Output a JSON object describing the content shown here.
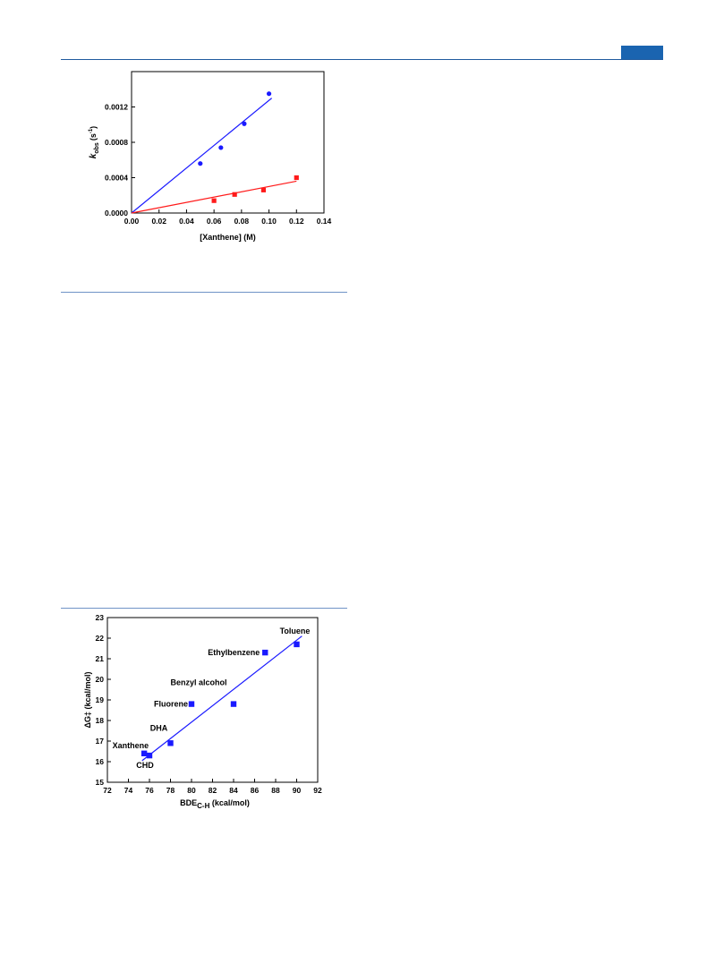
{
  "header": {
    "accent_color": "#1a64b0"
  },
  "chart_data": [
    {
      "type": "scatter",
      "xlabel": "[Xanthene] (M)",
      "ylabel_parts": {
        "k": "k",
        "sub": "obs",
        "unit": "(s",
        "sup": "-1",
        "close": ")"
      },
      "xlim": [
        0,
        0.14
      ],
      "ylim": [
        0,
        0.0016
      ],
      "xticks": [
        "0.00",
        "0.02",
        "0.04",
        "0.06",
        "0.08",
        "0.10",
        "0.12",
        "0.14"
      ],
      "yticks": [
        "0.0000",
        "0.0004",
        "0.0008",
        "0.0012"
      ],
      "grid": false,
      "series": [
        {
          "marker": "circle",
          "color": "#1a1aff",
          "x": [
            0.05,
            0.065,
            0.082,
            0.1
          ],
          "y": [
            0.00056,
            0.00074,
            0.00101,
            0.00135
          ],
          "fit": [
            [
              0,
              0
            ],
            [
              0.102,
              0.0013
            ]
          ]
        },
        {
          "marker": "square",
          "color": "#ff1a1a",
          "x": [
            0.06,
            0.075,
            0.096,
            0.12
          ],
          "y": [
            0.00014,
            0.00021,
            0.00026,
            0.0004
          ],
          "fit": [
            [
              0,
              0
            ],
            [
              0.12,
              0.00036
            ]
          ]
        }
      ]
    },
    {
      "type": "scatter",
      "xlabel": {
        "base": "BDE",
        "sub": "C-H",
        "unit": " (kcal/mol)"
      },
      "ylabel": "ΔG‡ (kcal/mol)",
      "xlim": [
        72,
        92
      ],
      "ylim": [
        15,
        23
      ],
      "xticks": [
        "72",
        "74",
        "76",
        "78",
        "80",
        "82",
        "84",
        "86",
        "88",
        "90",
        "92"
      ],
      "yticks": [
        "15",
        "16",
        "17",
        "18",
        "19",
        "20",
        "21",
        "22",
        "23"
      ],
      "grid": false,
      "series": [
        {
          "marker": "square",
          "color": "#1a1aff",
          "x": [
            75.5,
            76,
            78,
            80,
            84,
            87,
            90
          ],
          "y": [
            16.4,
            16.3,
            16.9,
            18.8,
            18.8,
            21.3,
            21.7
          ],
          "fit": [
            [
              75.3,
              16.05
            ],
            [
              90.5,
              22.1
            ]
          ]
        }
      ],
      "annotations": [
        {
          "text": "Xanthene",
          "x": 75.5,
          "y": 16.4
        },
        {
          "text": "CHD",
          "x": 76,
          "y": 16.3
        },
        {
          "text": "DHA",
          "x": 78,
          "y": 16.9
        },
        {
          "text": "Fluorene",
          "x": 80,
          "y": 18.8
        },
        {
          "text": "Benzyl alcohol",
          "x": 84,
          "y": 18.8
        },
        {
          "text": "Ethylbenzene",
          "x": 87,
          "y": 21.3
        },
        {
          "text": "Toluene",
          "x": 90,
          "y": 21.7
        }
      ]
    }
  ]
}
